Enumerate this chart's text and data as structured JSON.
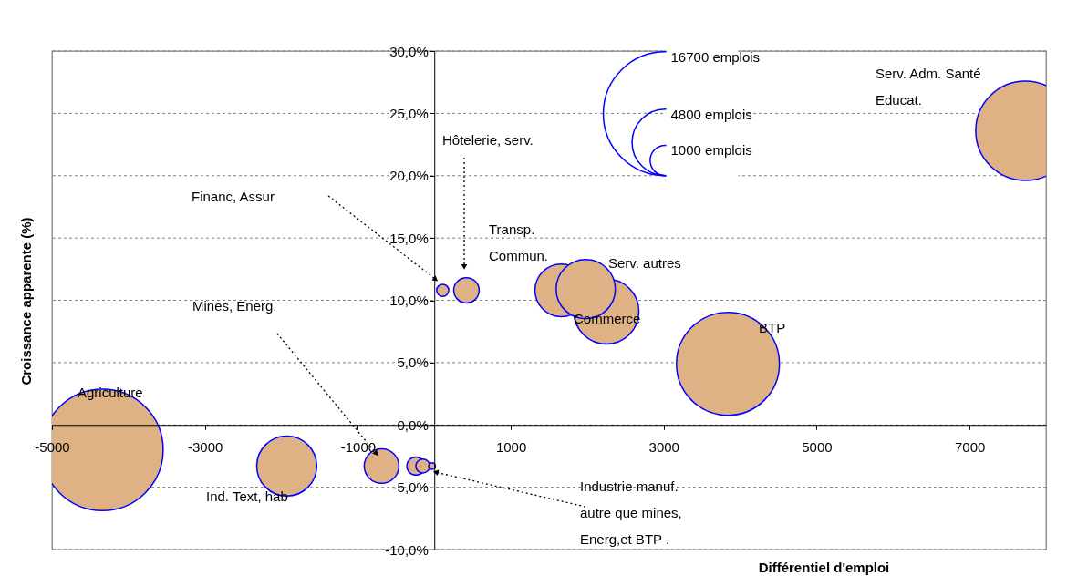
{
  "chart_data": {
    "type": "bubble",
    "xlabel": "Différentiel d'emploi",
    "ylabel": "Croissance apparente (%)",
    "x": [
      -4340,
      -1930,
      -690,
      -240,
      -150,
      -30,
      110,
      420,
      2250,
      1660,
      1980,
      3840,
      7730
    ],
    "values": [
      -2.0,
      -3.3,
      -3.3,
      -3.3,
      -3.3,
      -3.3,
      10.8,
      10.8,
      9.1,
      10.8,
      10.9,
      4.9,
      23.6
    ],
    "sizes": [
      16000,
      3900,
      1300,
      360,
      210,
      50,
      160,
      700,
      4600,
      3000,
      3800,
      11500,
      10700
    ],
    "color": "#deb285",
    "xlim": [
      -5000,
      8000
    ],
    "xticks": [
      -5000,
      -3000,
      -1000,
      1000,
      3000,
      5000,
      7000
    ],
    "ylim": [
      -10,
      30
    ],
    "yticks": [
      {
        "value": -10,
        "label": "-10,0%"
      },
      {
        "value": -5,
        "label": "-5,0%"
      },
      {
        "value": 0,
        "label": "0,0%"
      },
      {
        "value": 5,
        "label": "5,0%"
      },
      {
        "value": 10,
        "label": "10,0%"
      },
      {
        "value": 15,
        "label": "15,0%"
      },
      {
        "value": 20,
        "label": "20,0%"
      },
      {
        "value": 25,
        "label": "25,0%"
      },
      {
        "value": 30,
        "label": "30,0%"
      }
    ],
    "grid": "y",
    "size_legend": [
      {
        "value": 16700,
        "label": "16700 emplois"
      },
      {
        "value": 4800,
        "label": "4800 emplois"
      },
      {
        "value": 1000,
        "label": "1000 emplois"
      }
    ],
    "annotations": [
      "Agriculture",
      "Ind. Text, hab",
      "Mines, Energ.",
      {
        "text": "Industrie manuf.\nautre que mines,\nEnerg,et BTP .",
        "x": -30,
        "y": -3.3
      },
      "Financ, Assur",
      "Hôtelerie, serv.",
      "Transp.\nCommun.",
      "Serv. autres",
      "Commerce",
      "BTP",
      "Serv. Adm. Santé\nEducat."
    ]
  }
}
